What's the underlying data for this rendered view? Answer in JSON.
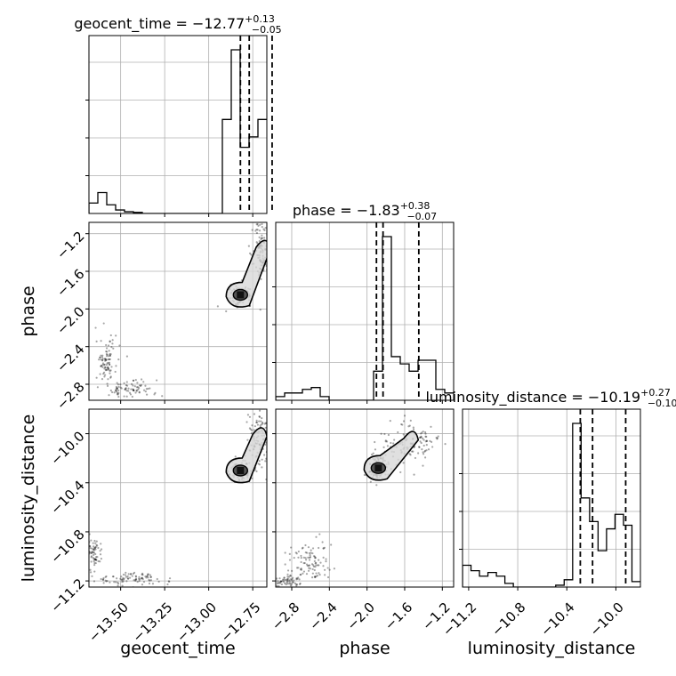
{
  "chart_data": {
    "type": "corner",
    "parameters": [
      "geocent_time",
      "phase",
      "luminosity_distance"
    ],
    "axis_labels": {
      "geocent_time": "geocent_time",
      "phase": "phase",
      "luminosity_distance": "luminosity_distance"
    },
    "ranges": {
      "geocent_time": [
        -13.68,
        -12.67
      ],
      "phase": [
        -2.97,
        -1.08
      ],
      "luminosity_distance": [
        -11.25,
        -9.8
      ]
    },
    "ticks": {
      "geocent_time": [
        -13.5,
        -13.25,
        -13.0,
        -12.75
      ],
      "phase": [
        -2.8,
        -2.4,
        -2.0,
        -1.6,
        -1.2
      ],
      "luminosity_distance": [
        -11.2,
        -10.8,
        -10.4,
        -10.0
      ]
    },
    "tick_labels": {
      "geocent_time": [
        "−13.50",
        "−13.25",
        "−13.00",
        "−12.75"
      ],
      "phase": [
        "−2.8",
        "−2.4",
        "−2.0",
        "−1.6",
        "−1.2"
      ],
      "luminosity_distance": [
        "−11.2",
        "−10.8",
        "−10.4",
        "−10.0"
      ]
    },
    "titles": {
      "geocent_time": {
        "prefix": "geocent_time = −12.77",
        "sup": "+0.13",
        "sub": "−0.05"
      },
      "phase": {
        "prefix": "phase = −1.83",
        "sup": "+0.38",
        "sub": "−0.07"
      },
      "luminosity_distance": {
        "prefix": "luminosity_distance = −10.19",
        "sup": "+0.27",
        "sub": "−0.10"
      }
    },
    "histograms": {
      "geocent_time": {
        "counts": [
          0.3,
          0.6,
          0.25,
          0.1,
          0.05,
          0.03,
          0,
          0,
          0,
          0,
          0,
          0,
          0,
          0,
          0,
          2.7,
          4.7,
          1.9,
          2.2,
          2.7
        ],
        "quantiles": [
          -12.82,
          -12.77,
          -12.64
        ]
      },
      "phase": {
        "counts": [
          0.1,
          0.2,
          0.2,
          0.3,
          0.35,
          0.1,
          0,
          0,
          0,
          0,
          0,
          0.8,
          4.5,
          1.2,
          1.0,
          0.8,
          1.1,
          1.1,
          0.3,
          0.2
        ],
        "quantiles": [
          -1.9,
          -1.83,
          -1.45
        ]
      },
      "luminosity_distance": {
        "counts": [
          0.6,
          0.45,
          0.3,
          0.4,
          0.3,
          0.1,
          0,
          0,
          0,
          0,
          0,
          0.05,
          0.2,
          4.5,
          2.45,
          1.8,
          1.0,
          1.6,
          2.0,
          1.7,
          0.15
        ],
        "quantiles": [
          -10.29,
          -10.19,
          -9.92
        ]
      }
    },
    "grid": true
  }
}
